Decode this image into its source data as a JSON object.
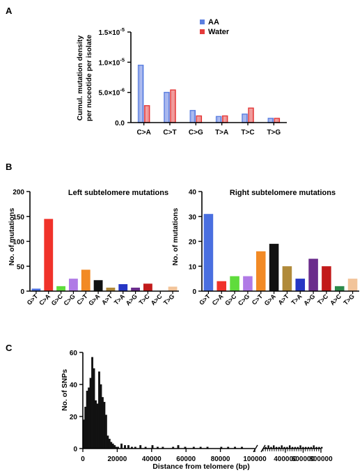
{
  "panels": {
    "a": "A",
    "b": "B",
    "c": "C"
  },
  "chart_data": [
    {
      "type": "bar",
      "ylabel_lines": [
        "Cumul. mutation density",
        "per nuceotide per isolate"
      ],
      "categories": [
        "C>A",
        "C>T",
        "C>G",
        "T>A",
        "T>C",
        "T>G"
      ],
      "series": [
        {
          "name": "AA",
          "color": "#5b7fe0",
          "fill": "#c8cff5",
          "values": [
            9.5e-06,
            5e-06,
            2e-06,
            1e-06,
            1.4e-06,
            7e-07
          ]
        },
        {
          "name": "Water",
          "color": "#e43b3b",
          "fill": "#f6c4c4",
          "values": [
            2.8e-06,
            5.4e-06,
            1.1e-06,
            1.1e-06,
            2.4e-06,
            7e-07
          ]
        }
      ],
      "ylim": [
        0,
        1.5e-05
      ],
      "yticks": [
        {
          "value": 0,
          "base": "0.0",
          "exp": ""
        },
        {
          "value": 5e-06,
          "base": "5.0×10",
          "exp": "-6"
        },
        {
          "value": 1e-05,
          "base": "1.0×10",
          "exp": "-5"
        },
        {
          "value": 1.5e-05,
          "base": "1.5×10",
          "exp": "-5"
        }
      ],
      "legend_position": "top-right"
    },
    {
      "type": "bar",
      "title": "Left subtelomere mutations",
      "ylabel": "No. of mutations",
      "categories": [
        "G>T",
        "C>A",
        "G>C",
        "C>G",
        "C>T",
        "G>A",
        "A>T",
        "T>A",
        "A>G",
        "T>C",
        "A>C",
        "T>G"
      ],
      "values": [
        5,
        145,
        10,
        25,
        43,
        22,
        7,
        14,
        7,
        15,
        0,
        9
      ],
      "colors": [
        "#4a6fe0",
        "#f0322a",
        "#5fdc3c",
        "#b07ae6",
        "#f28a25",
        "#111111",
        "#b08a3a",
        "#2636c4",
        "#6a2c8c",
        "#c21a1a",
        "#2c8a4a",
        "#f2c49a"
      ],
      "ylim": [
        0,
        200
      ],
      "yticks": [
        0,
        50,
        100,
        150,
        200
      ]
    },
    {
      "type": "bar",
      "title": "Right subtelomere mutations",
      "ylabel": "No. of mutations",
      "categories": [
        "G>T",
        "C>A",
        "G>C",
        "C>G",
        "C>T",
        "G>A",
        "A>T",
        "T>A",
        "A>G",
        "T>C",
        "A>C",
        "T>G"
      ],
      "values": [
        31,
        4,
        6,
        6,
        16,
        19,
        10,
        5,
        13,
        10,
        2,
        5
      ],
      "colors": [
        "#4a6fe0",
        "#f0322a",
        "#5fdc3c",
        "#b07ae6",
        "#f28a25",
        "#111111",
        "#b08a3a",
        "#2636c4",
        "#6a2c8c",
        "#c21a1a",
        "#2c8a4a",
        "#f2c49a"
      ],
      "ylim": [
        0,
        40
      ],
      "yticks": [
        0,
        10,
        20,
        30,
        40
      ]
    },
    {
      "type": "bar",
      "xlabel": "Distance from telomere (bp)",
      "ylabel": "No. of SNPs",
      "ylim": [
        0,
        60
      ],
      "yticks": [
        0,
        20,
        40,
        60
      ],
      "xticks_left": [
        0,
        20000,
        40000,
        60000,
        80000,
        100000
      ],
      "xticks_right": [
        400000,
        600000,
        800000
      ],
      "bin_width_bp": 1000,
      "x": [
        0,
        1000,
        2000,
        3000,
        4000,
        5000,
        6000,
        7000,
        8000,
        9000,
        10000,
        11000,
        12000,
        13000,
        14000,
        15000,
        16000,
        17000,
        18000,
        19000,
        20000,
        22000,
        24000,
        26000,
        28000,
        30000,
        33000,
        36000,
        40000,
        43000,
        46000,
        52000,
        55000,
        59000,
        64000,
        68000,
        72000,
        80000,
        84000,
        88000,
        92000
      ],
      "values": [
        18,
        26,
        36,
        38,
        44,
        57,
        50,
        30,
        28,
        48,
        40,
        32,
        29,
        21,
        8,
        6,
        4,
        3,
        2,
        1,
        1,
        3,
        2,
        2,
        1,
        1,
        2,
        1,
        2,
        1,
        1,
        1,
        2,
        1,
        1,
        1,
        1,
        1,
        1,
        1,
        1
      ],
      "right_x": [
        170000,
        200000,
        230000,
        260000,
        290000,
        320000,
        350000,
        380000,
        410000,
        440000,
        470000,
        500000,
        530000,
        560000,
        590000,
        620000,
        650000,
        680000,
        710000,
        740000,
        770000,
        800000
      ],
      "right_values": [
        1,
        2,
        1,
        2,
        1,
        1,
        2,
        1,
        1,
        2,
        1,
        1,
        1,
        2,
        1,
        1,
        1,
        1,
        2,
        1,
        1,
        1
      ]
    }
  ]
}
